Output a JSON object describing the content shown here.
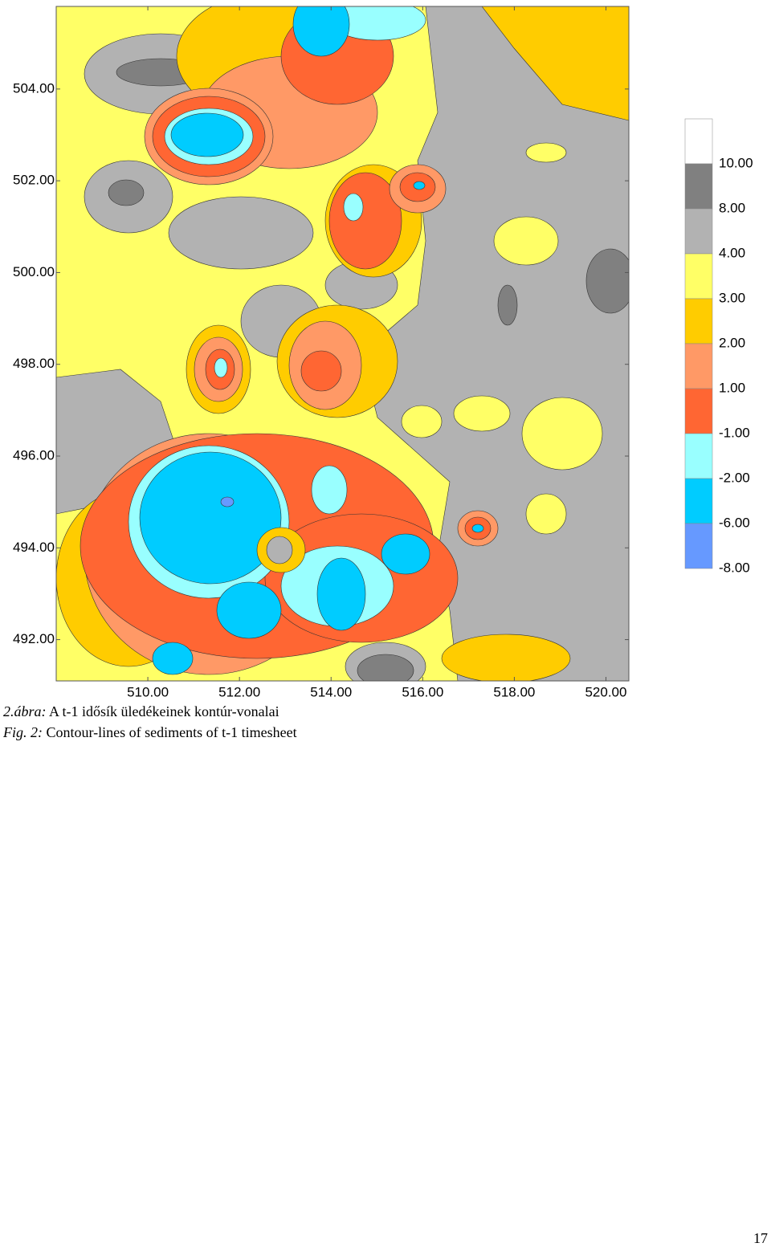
{
  "chart_data": {
    "type": "contour",
    "xlim": [
      508.0,
      520.5
    ],
    "ylim": [
      491.1,
      505.8
    ],
    "xticks": [
      {
        "value": 510,
        "label": "510.00"
      },
      {
        "value": 512,
        "label": "512.00"
      },
      {
        "value": 514,
        "label": "514.00"
      },
      {
        "value": 516,
        "label": "516.00"
      },
      {
        "value": 518,
        "label": "518.00"
      },
      {
        "value": 520,
        "label": "520.00"
      }
    ],
    "yticks": [
      {
        "value": 492,
        "label": "492.00"
      },
      {
        "value": 494,
        "label": "494.00"
      },
      {
        "value": 496,
        "label": "496.00"
      },
      {
        "value": 498,
        "label": "498.00"
      },
      {
        "value": 500,
        "label": "500.00"
      },
      {
        "value": 502,
        "label": "502.00"
      },
      {
        "value": 504,
        "label": "504.00"
      }
    ],
    "levels": [
      {
        "value": 10,
        "label": "10.00"
      },
      {
        "value": 8,
        "label": "8.00"
      },
      {
        "value": 4,
        "label": "4.00"
      },
      {
        "value": 3,
        "label": "3.00"
      },
      {
        "value": 2,
        "label": "2.00"
      },
      {
        "value": 1,
        "label": "1.00"
      },
      {
        "value": -1,
        "label": "-1.00"
      },
      {
        "value": -2,
        "label": "-2.00"
      },
      {
        "value": -6,
        "label": "-6.00"
      },
      {
        "value": -8,
        "label": "-8.00"
      }
    ],
    "colors": [
      "#ffffff",
      "#808080",
      "#b2b2b2",
      "#ffff66",
      "#ffcc00",
      "#ff9966",
      "#ff6633",
      "#99ffff",
      "#00ccff",
      "#6699ff"
    ]
  },
  "caption": {
    "hu_label": "2.ábra:",
    "hu_text": "A t-1 idősík üledékeinek kontúr-vonalai",
    "en_label": "Fig. 2:",
    "en_text": "Contour-lines of sediments of t-1 timesheet"
  },
  "page_number": "17"
}
